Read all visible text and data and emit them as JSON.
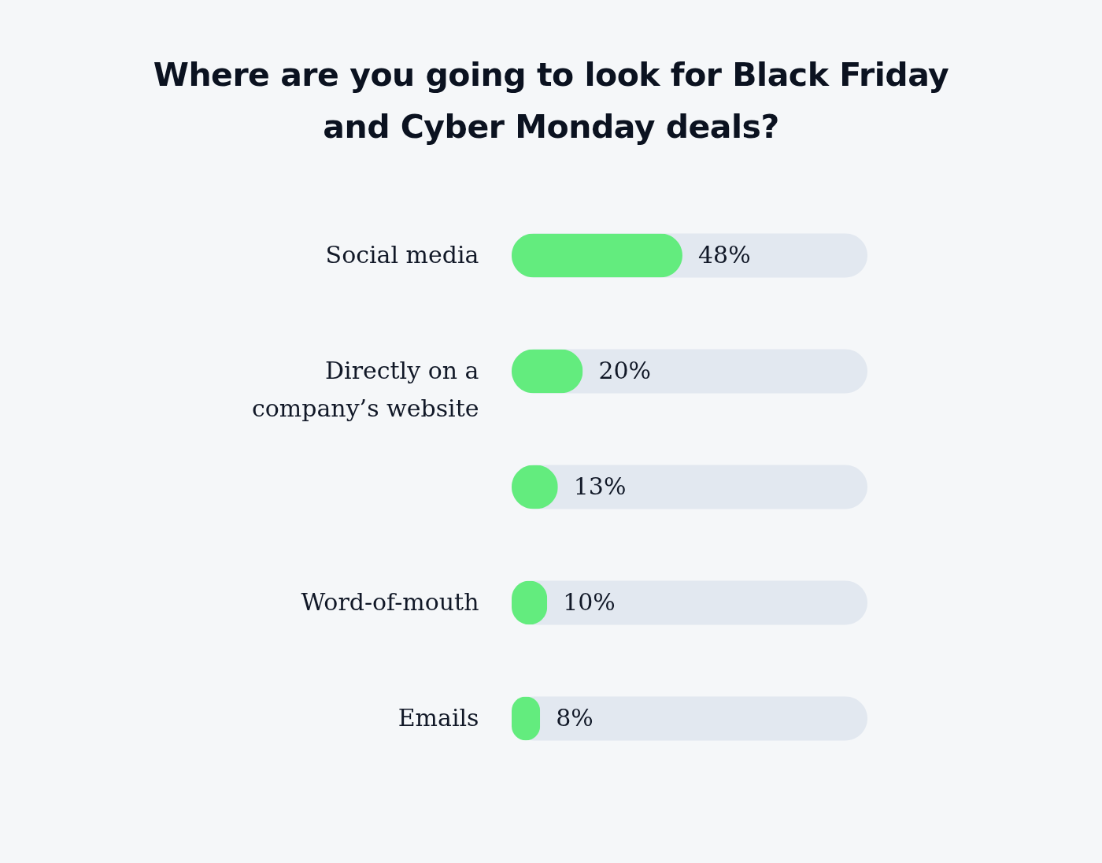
{
  "chart_data": {
    "type": "bar",
    "orientation": "horizontal",
    "title": "Where are you going to look for Black Friday and Cyber Monday deals?",
    "categories": [
      "Social media",
      "Directly on a company’s website",
      null,
      "Word-of-mouth",
      "Emails"
    ],
    "values": [
      48,
      20,
      13,
      10,
      8
    ],
    "value_labels": [
      "48%",
      "20%",
      "13%",
      "10%",
      "8%"
    ],
    "color": "#63ec7e",
    "xlim": [
      0,
      100
    ],
    "tick_labels": "y"
  }
}
